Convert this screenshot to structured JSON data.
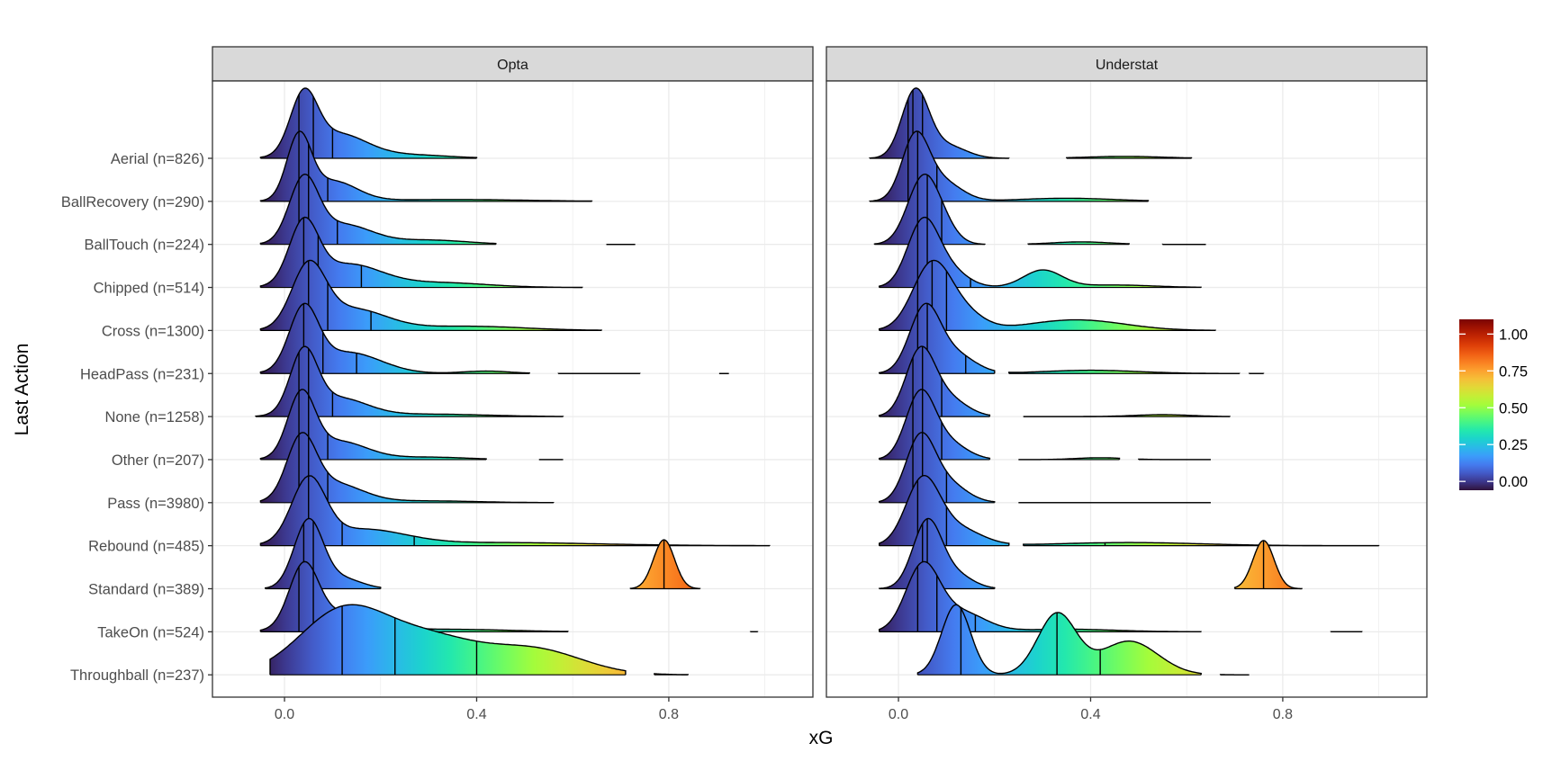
{
  "chart_data": {
    "type": "ridgeline",
    "x_label": "xG",
    "y_label": "Last Action",
    "xlim": [
      -0.15,
      1.1
    ],
    "x_ticks": [
      0.0,
      0.4,
      0.8
    ],
    "x_tick_labels": [
      "0.0",
      "0.4",
      "0.8"
    ],
    "categories": [
      "Aerial (n=826)",
      "BallRecovery (n=290)",
      "BallTouch (n=224)",
      "Chipped (n=514)",
      "Cross (n=1300)",
      "HeadPass (n=231)",
      "None (n=1258)",
      "Other (n=207)",
      "Pass (n=3980)",
      "Rebound (n=485)",
      "Standard (n=389)",
      "TakeOn (n=524)",
      "Throughball (n=237)"
    ],
    "colorbar": {
      "ticks": [
        0.0,
        0.25,
        0.5,
        0.75,
        1.0
      ],
      "tick_labels": [
        "0.00",
        "0.25",
        "0.50",
        "0.75",
        "1.00"
      ],
      "range": [
        -0.06,
        1.1
      ]
    },
    "panels": [
      {
        "title": "Opta",
        "series": [
          {
            "category": "Aerial (n=826)",
            "segments": [
              [
                -0.05,
                0.4
              ]
            ],
            "peaks": [
              {
                "x": 0.04,
                "sd": 0.028,
                "w": 1.0
              },
              {
                "x": 0.11,
                "sd": 0.06,
                "w": 0.42
              },
              {
                "x": 0.26,
                "sd": 0.08,
                "w": 0.06
              }
            ],
            "quantiles": [
              0.03,
              0.06,
              0.1
            ]
          },
          {
            "category": "BallRecovery (n=290)",
            "segments": [
              [
                -0.05,
                0.64
              ]
            ],
            "peaks": [
              {
                "x": 0.03,
                "sd": 0.025,
                "w": 1.0
              },
              {
                "x": 0.1,
                "sd": 0.05,
                "w": 0.32
              },
              {
                "x": 0.35,
                "sd": 0.15,
                "w": 0.03
              }
            ],
            "quantiles": [
              0.03,
              0.05,
              0.09
            ]
          },
          {
            "category": "BallTouch (n=224)",
            "segments": [
              [
                -0.05,
                0.44
              ],
              [
                0.67,
                0.73
              ]
            ],
            "peaks": [
              {
                "x": 0.04,
                "sd": 0.03,
                "w": 1.0
              },
              {
                "x": 0.12,
                "sd": 0.06,
                "w": 0.32
              },
              {
                "x": 0.3,
                "sd": 0.08,
                "w": 0.07
              }
            ],
            "quantiles": [
              0.03,
              0.05,
              0.11
            ]
          },
          {
            "category": "Chipped (n=514)",
            "segments": [
              [
                -0.05,
                0.62
              ]
            ],
            "peaks": [
              {
                "x": 0.04,
                "sd": 0.03,
                "w": 1.0
              },
              {
                "x": 0.13,
                "sd": 0.07,
                "w": 0.38
              },
              {
                "x": 0.32,
                "sd": 0.1,
                "w": 0.08
              }
            ],
            "quantiles": [
              0.04,
              0.07,
              0.16
            ]
          },
          {
            "category": "Cross (n=1300)",
            "segments": [
              [
                -0.05,
                0.66
              ]
            ],
            "peaks": [
              {
                "x": 0.05,
                "sd": 0.035,
                "w": 1.0
              },
              {
                "x": 0.14,
                "sd": 0.07,
                "w": 0.35
              },
              {
                "x": 0.38,
                "sd": 0.12,
                "w": 0.07
              }
            ],
            "quantiles": [
              0.05,
              0.09,
              0.18
            ]
          },
          {
            "category": "HeadPass (n=231)",
            "segments": [
              [
                -0.05,
                0.51
              ],
              [
                0.57,
                0.74
              ],
              [
                0.905,
                0.925
              ]
            ],
            "peaks": [
              {
                "x": 0.04,
                "sd": 0.03,
                "w": 1.0
              },
              {
                "x": 0.13,
                "sd": 0.07,
                "w": 0.35
              },
              {
                "x": 0.42,
                "sd": 0.05,
                "w": 0.04
              }
            ],
            "quantiles": [
              0.04,
              0.08,
              0.15
            ]
          },
          {
            "category": "None (n=1258)",
            "segments": [
              [
                -0.06,
                0.58
              ]
            ],
            "peaks": [
              {
                "x": 0.04,
                "sd": 0.028,
                "w": 1.0
              },
              {
                "x": 0.11,
                "sd": 0.06,
                "w": 0.3
              },
              {
                "x": 0.3,
                "sd": 0.12,
                "w": 0.04
              }
            ],
            "quantiles": [
              0.03,
              0.05,
              0.1
            ]
          },
          {
            "category": "Other (n=207)",
            "segments": [
              [
                -0.05,
                0.42
              ],
              [
                0.53,
                0.58
              ]
            ],
            "peaks": [
              {
                "x": 0.035,
                "sd": 0.028,
                "w": 1.0
              },
              {
                "x": 0.11,
                "sd": 0.06,
                "w": 0.3
              },
              {
                "x": 0.3,
                "sd": 0.08,
                "w": 0.04
              }
            ],
            "quantiles": [
              0.03,
              0.05,
              0.09
            ]
          },
          {
            "category": "Pass (n=3980)",
            "segments": [
              [
                -0.05,
                0.56
              ]
            ],
            "peaks": [
              {
                "x": 0.035,
                "sd": 0.03,
                "w": 1.0
              },
              {
                "x": 0.1,
                "sd": 0.06,
                "w": 0.33
              },
              {
                "x": 0.3,
                "sd": 0.1,
                "w": 0.03
              }
            ],
            "quantiles": [
              0.03,
              0.05,
              0.09
            ]
          },
          {
            "category": "Rebound (n=485)",
            "segments": [
              [
                -0.05,
                1.01
              ]
            ],
            "peaks": [
              {
                "x": 0.05,
                "sd": 0.035,
                "w": 1.0
              },
              {
                "x": 0.16,
                "sd": 0.09,
                "w": 0.25
              },
              {
                "x": 0.45,
                "sd": 0.2,
                "w": 0.05
              }
            ],
            "quantiles": [
              0.05,
              0.12,
              0.27
            ]
          },
          {
            "category": "Standard (n=389)",
            "segments": [
              [
                -0.04,
                0.2
              ],
              [
                0.72,
                0.865
              ]
            ],
            "peaks": [
              {
                "x": 0.05,
                "sd": 0.03,
                "w": 1.0
              },
              {
                "x": 0.12,
                "sd": 0.04,
                "w": 0.15
              },
              {
                "x": 0.79,
                "sd": 0.022,
                "w": 0.72
              }
            ],
            "quantiles": [
              0.04,
              0.06,
              0.79
            ]
          },
          {
            "category": "TakeOn (n=524)",
            "segments": [
              [
                -0.05,
                0.59
              ],
              [
                0.97,
                0.985
              ]
            ],
            "peaks": [
              {
                "x": 0.04,
                "sd": 0.03,
                "w": 1.0
              },
              {
                "x": 0.12,
                "sd": 0.07,
                "w": 0.3
              },
              {
                "x": 0.35,
                "sd": 0.12,
                "w": 0.04
              }
            ],
            "quantiles": [
              0.03,
              0.06,
              0.13
            ]
          },
          {
            "category": "Throughball (n=237)",
            "segments": [
              [
                -0.03,
                0.71
              ],
              [
                0.77,
                0.84
              ]
            ],
            "peaks": [
              {
                "x": 0.12,
                "sd": 0.09,
                "w": 0.8
              },
              {
                "x": 0.3,
                "sd": 0.1,
                "w": 0.45
              },
              {
                "x": 0.52,
                "sd": 0.1,
                "w": 0.32
              }
            ],
            "quantiles": [
              0.12,
              0.23,
              0.4
            ]
          }
        ]
      },
      {
        "title": "Understat",
        "series": [
          {
            "category": "Aerial (n=826)",
            "segments": [
              [
                -0.06,
                0.23
              ],
              [
                0.35,
                0.61
              ]
            ],
            "peaks": [
              {
                "x": 0.035,
                "sd": 0.028,
                "w": 1.05
              },
              {
                "x": 0.1,
                "sd": 0.04,
                "w": 0.2
              },
              {
                "x": 0.47,
                "sd": 0.08,
                "w": 0.03
              }
            ],
            "quantiles": [
              0.02,
              0.03,
              0.05
            ]
          },
          {
            "category": "BallRecovery (n=290)",
            "segments": [
              [
                -0.06,
                0.52
              ]
            ],
            "peaks": [
              {
                "x": 0.035,
                "sd": 0.028,
                "w": 1.0
              },
              {
                "x": 0.09,
                "sd": 0.04,
                "w": 0.32
              },
              {
                "x": 0.35,
                "sd": 0.1,
                "w": 0.05
              }
            ],
            "quantiles": [
              0.02,
              0.04,
              0.08
            ]
          },
          {
            "category": "BallTouch (n=224)",
            "segments": [
              [
                -0.05,
                0.18
              ],
              [
                0.27,
                0.48
              ],
              [
                0.55,
                0.64
              ]
            ],
            "peaks": [
              {
                "x": 0.05,
                "sd": 0.032,
                "w": 1.0
              },
              {
                "x": 0.09,
                "sd": 0.03,
                "w": 0.25
              },
              {
                "x": 0.38,
                "sd": 0.06,
                "w": 0.04
              }
            ],
            "quantiles": [
              0.04,
              0.06,
              0.09
            ]
          },
          {
            "category": "Chipped (n=514)",
            "segments": [
              [
                -0.04,
                0.63
              ]
            ],
            "peaks": [
              {
                "x": 0.05,
                "sd": 0.032,
                "w": 1.0
              },
              {
                "x": 0.1,
                "sd": 0.04,
                "w": 0.3
              },
              {
                "x": 0.3,
                "sd": 0.04,
                "w": 0.28
              },
              {
                "x": 0.45,
                "sd": 0.08,
                "w": 0.04
              }
            ],
            "quantiles": [
              0.04,
              0.06,
              0.15
            ]
          },
          {
            "category": "Cross (n=1300)",
            "segments": [
              [
                -0.04,
                0.66
              ]
            ],
            "peaks": [
              {
                "x": 0.07,
                "sd": 0.04,
                "w": 1.0
              },
              {
                "x": 0.14,
                "sd": 0.04,
                "w": 0.22
              },
              {
                "x": 0.37,
                "sd": 0.1,
                "w": 0.16
              }
            ],
            "quantiles": [
              0.04,
              0.07,
              0.1
            ]
          },
          {
            "category": "HeadPass (n=231)",
            "segments": [
              [
                -0.04,
                0.2
              ],
              [
                0.23,
                0.71
              ],
              [
                0.73,
                0.76
              ]
            ],
            "peaks": [
              {
                "x": 0.055,
                "sd": 0.032,
                "w": 1.0
              },
              {
                "x": 0.12,
                "sd": 0.04,
                "w": 0.28
              },
              {
                "x": 0.4,
                "sd": 0.1,
                "w": 0.05
              }
            ],
            "quantiles": [
              0.04,
              0.06,
              0.14
            ]
          },
          {
            "category": "None (n=1258)",
            "segments": [
              [
                -0.04,
                0.19
              ],
              [
                0.26,
                0.69
              ]
            ],
            "peaks": [
              {
                "x": 0.045,
                "sd": 0.03,
                "w": 1.0
              },
              {
                "x": 0.1,
                "sd": 0.04,
                "w": 0.3
              },
              {
                "x": 0.55,
                "sd": 0.06,
                "w": 0.03
              }
            ],
            "quantiles": [
              0.03,
              0.05,
              0.09
            ]
          },
          {
            "category": "Other (n=207)",
            "segments": [
              [
                -0.04,
                0.19
              ],
              [
                0.25,
                0.46
              ],
              [
                0.5,
                0.65
              ]
            ],
            "peaks": [
              {
                "x": 0.045,
                "sd": 0.03,
                "w": 1.0
              },
              {
                "x": 0.1,
                "sd": 0.04,
                "w": 0.28
              },
              {
                "x": 0.42,
                "sd": 0.05,
                "w": 0.03
              }
            ],
            "quantiles": [
              0.03,
              0.05,
              0.09
            ]
          },
          {
            "category": "Pass (n=3980)",
            "segments": [
              [
                -0.04,
                0.2
              ],
              [
                0.25,
                0.65
              ]
            ],
            "peaks": [
              {
                "x": 0.045,
                "sd": 0.03,
                "w": 1.0
              },
              {
                "x": 0.1,
                "sd": 0.04,
                "w": 0.32
              }
            ],
            "quantiles": [
              0.03,
              0.05,
              0.1
            ]
          },
          {
            "category": "Rebound (n=485)",
            "segments": [
              [
                -0.04,
                0.23
              ],
              [
                0.26,
                1.0
              ]
            ],
            "peaks": [
              {
                "x": 0.05,
                "sd": 0.035,
                "w": 1.0
              },
              {
                "x": 0.12,
                "sd": 0.05,
                "w": 0.28
              },
              {
                "x": 0.48,
                "sd": 0.15,
                "w": 0.05
              }
            ],
            "quantiles": [
              0.04,
              0.1,
              0.43
            ]
          },
          {
            "category": "Standard (n=389)",
            "segments": [
              [
                -0.04,
                0.2
              ],
              [
                0.7,
                0.84
              ]
            ],
            "peaks": [
              {
                "x": 0.06,
                "sd": 0.03,
                "w": 1.0
              },
              {
                "x": 0.12,
                "sd": 0.035,
                "w": 0.2
              },
              {
                "x": 0.76,
                "sd": 0.022,
                "w": 0.72
              }
            ],
            "quantiles": [
              0.05,
              0.06,
              0.76
            ]
          },
          {
            "category": "TakeOn (n=524)",
            "segments": [
              [
                -0.04,
                0.63
              ],
              [
                0.9,
                0.965
              ]
            ],
            "peaks": [
              {
                "x": 0.05,
                "sd": 0.035,
                "w": 1.0
              },
              {
                "x": 0.13,
                "sd": 0.05,
                "w": 0.3
              },
              {
                "x": 0.35,
                "sd": 0.1,
                "w": 0.04
              }
            ],
            "quantiles": [
              0.04,
              0.08,
              0.16
            ]
          },
          {
            "category": "Throughball (n=237)",
            "segments": [
              [
                0.04,
                0.63
              ],
              [
                0.67,
                0.73
              ]
            ],
            "peaks": [
              {
                "x": 0.12,
                "sd": 0.03,
                "w": 0.75
              },
              {
                "x": 0.33,
                "sd": 0.04,
                "w": 0.65
              },
              {
                "x": 0.48,
                "sd": 0.06,
                "w": 0.36
              }
            ],
            "quantiles": [
              0.13,
              0.33,
              0.42
            ]
          }
        ]
      }
    ]
  }
}
